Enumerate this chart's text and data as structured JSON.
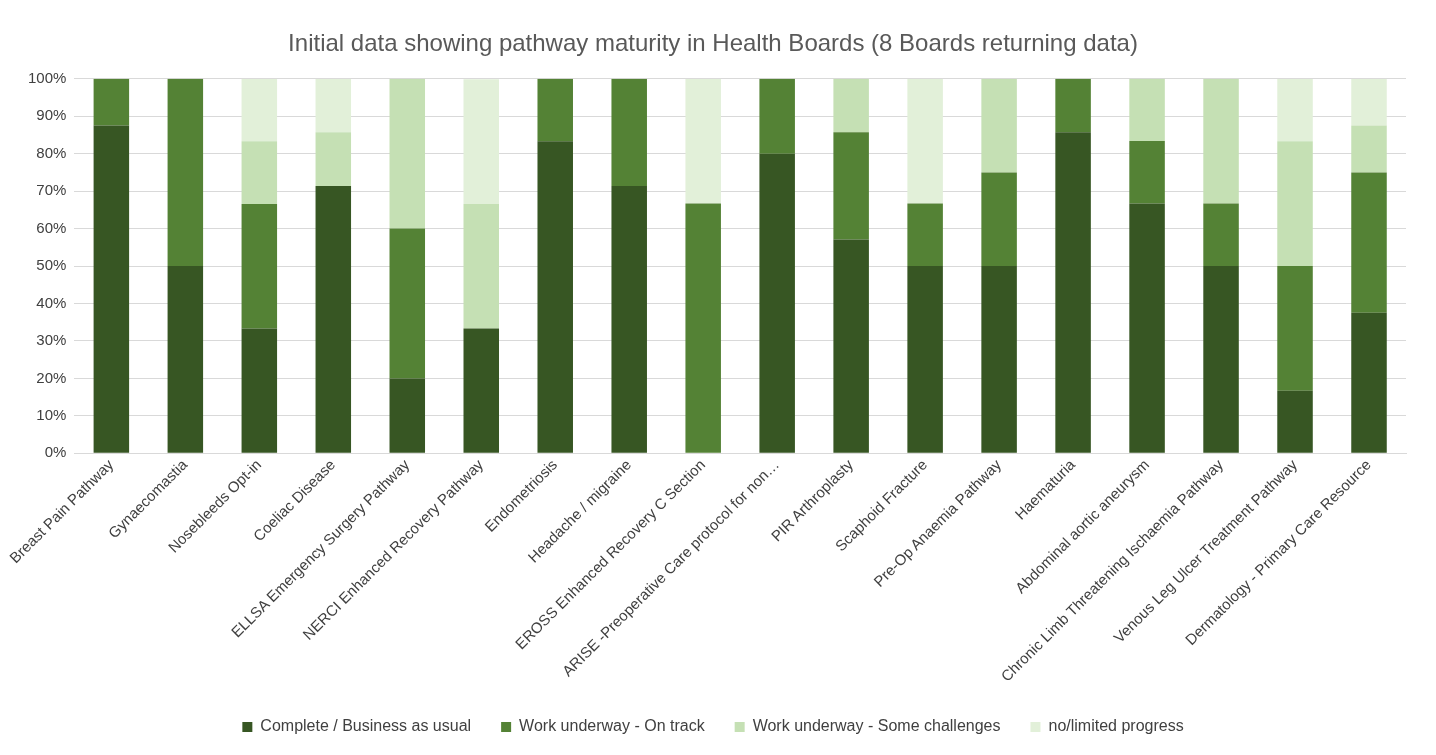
{
  "chart_data": {
    "type": "bar",
    "title": "Initial data showing pathway maturity in Health Boards (8 Boards returning data)",
    "categories": [
      "Breast Pain Pathway",
      "Gynaecomastia",
      "Nosebleeds Opt-in",
      "Coeliac Disease",
      "ELLSA Emergency Surgery Pathway",
      "NERCI Enhanced Recovery Pathway",
      "Endometriosis",
      "Headache / migraine",
      "EROSS Enhanced Recovery C Section",
      "ARISE -Preoperative Care protocol for non…",
      "PIR Arthroplasty",
      "Scaphoid Fracture",
      "Pre-Op Anaemia Pathway",
      "Haematuria",
      "Abdominal aortic aneurysm",
      "Chronic Limb Threatening Ischaemia Pathway",
      "Venous Leg Ulcer Treatment Pathway",
      "Dermatology - Primary Care Resource"
    ],
    "stacked": true,
    "series": [
      {
        "name": "Complete / Business as usual",
        "color": "#375623",
        "values": [
          87.5,
          50,
          33.3,
          71.4,
          20,
          33.3,
          83.3,
          71.4,
          0,
          80,
          57.1,
          50,
          50,
          85.7,
          66.7,
          50,
          16.7,
          37.5
        ]
      },
      {
        "name": "Work underway - On track",
        "color": "#548235",
        "values": [
          12.5,
          50,
          33.3,
          0,
          40,
          0,
          16.7,
          28.6,
          66.7,
          20,
          28.6,
          16.7,
          25,
          14.3,
          16.7,
          16.7,
          33.3,
          37.5
        ]
      },
      {
        "name": "Work underway - Some challenges",
        "color": "#c5e0b4",
        "values": [
          0,
          0,
          16.7,
          14.3,
          40,
          33.3,
          0,
          0,
          0,
          0,
          14.3,
          0,
          25,
          0,
          16.7,
          33.3,
          33.3,
          12.5
        ]
      },
      {
        "name": "no/limited progress",
        "color": "#e2f0d9",
        "values": [
          0,
          0,
          16.7,
          14.3,
          0,
          33.3,
          0,
          0,
          33.3,
          0,
          0,
          33.3,
          0,
          0,
          0,
          0,
          16.7,
          12.5
        ]
      }
    ],
    "ylim": [
      0,
      100
    ],
    "yticks": [
      {
        "value": 0,
        "label": "0%"
      },
      {
        "value": 10,
        "label": "10%"
      },
      {
        "value": 20,
        "label": "20%"
      },
      {
        "value": 30,
        "label": "30%"
      },
      {
        "value": 40,
        "label": "40%"
      },
      {
        "value": 50,
        "label": "50%"
      },
      {
        "value": 60,
        "label": "60%"
      },
      {
        "value": 70,
        "label": "70%"
      },
      {
        "value": 80,
        "label": "80%"
      },
      {
        "value": 90,
        "label": "90%"
      },
      {
        "value": 100,
        "label": "100%"
      }
    ],
    "grid": "y",
    "legend": "bottom"
  }
}
